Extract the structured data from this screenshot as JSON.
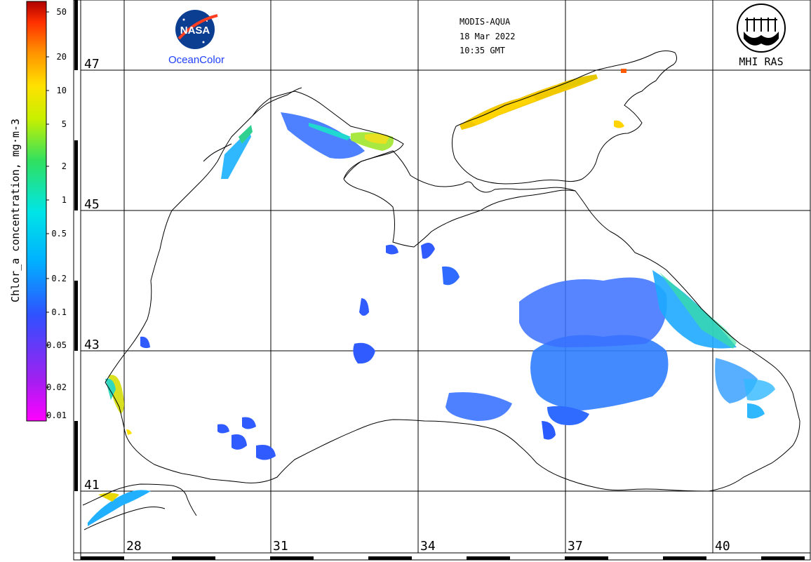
{
  "header": {
    "satellite": "MODIS-AQUA",
    "date": "18 Mar 2022",
    "time": "10:35 GMT"
  },
  "logos": {
    "nasa_text": "NASA",
    "oceancolor_text": "OceanColor",
    "mhi_text": "MHI RAS"
  },
  "colorbar": {
    "title": "Chlor_a concentration, mg·m-3",
    "ticks": [
      "50",
      "20",
      "10",
      "5",
      "2",
      "1",
      "0.5",
      "0.2",
      "0.1",
      "0.05",
      "0.02",
      "0.01"
    ],
    "colors": [
      "#ff00ff",
      "#a020f0",
      "#3050ff",
      "#00b0ff",
      "#00e5e5",
      "#30e060",
      "#c8f000",
      "#ffe000",
      "#ff9000",
      "#ff3000",
      "#b00000"
    ]
  },
  "grid": {
    "latitudes": [
      "47",
      "45",
      "43",
      "41"
    ],
    "longitudes": [
      "28",
      "31",
      "34",
      "37",
      "40"
    ]
  },
  "colors": {
    "coast": "#000000",
    "grid": "#000000",
    "low_chl": "#1e64ff",
    "mid_chl": "#00c8ff",
    "high_chl": "#ffd400"
  }
}
